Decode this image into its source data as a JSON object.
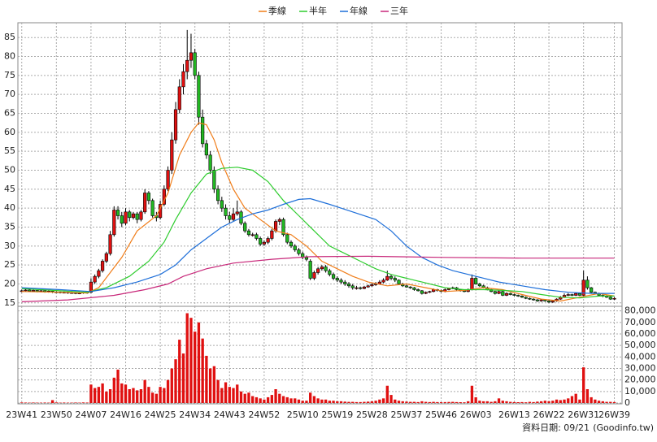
{
  "chart_data": {
    "type": "candlestick",
    "series": [
      {
        "name": "季線",
        "color": "#f07d19",
        "x": [
          0,
          10,
          17,
          20,
          26,
          30,
          35,
          38,
          41,
          44,
          46,
          48,
          50,
          52,
          55,
          58,
          62,
          66,
          70,
          74,
          78,
          82,
          86,
          90,
          95,
          100,
          105,
          110,
          115,
          120,
          125,
          130,
          135,
          140,
          145,
          150,
          154
        ],
        "values": [
          18,
          17.8,
          17.6,
          19,
          27,
          34,
          38,
          44,
          54,
          60,
          62.5,
          62,
          58,
          52,
          45,
          40,
          37,
          34,
          33,
          30,
          26,
          24,
          22,
          20.5,
          19.5,
          20,
          19,
          18,
          18.3,
          19,
          18.5,
          17.2,
          16,
          15.5,
          16.5,
          17.5,
          16.8
        ]
      },
      {
        "name": "半年",
        "color": "#2ecc2e",
        "x": [
          0,
          10,
          17,
          22,
          28,
          33,
          37,
          40,
          44,
          48,
          52,
          56,
          60,
          64,
          68,
          72,
          76,
          80,
          84,
          88,
          92,
          96,
          100,
          104,
          110,
          115,
          120,
          125,
          130,
          135,
          140,
          145,
          150,
          154
        ],
        "values": [
          18.8,
          18.2,
          17.8,
          19,
          22,
          26,
          31,
          37,
          44,
          49,
          50.5,
          50.8,
          50,
          47,
          42,
          38,
          34,
          30,
          28,
          26,
          24,
          22.5,
          21.5,
          20.5,
          19,
          18.5,
          18.5,
          18.3,
          18,
          17.2,
          16.5,
          16.3,
          16.8,
          16.8
        ]
      },
      {
        "name": "年線",
        "color": "#1e6fd9",
        "x": [
          0,
          10,
          18,
          24,
          30,
          36,
          40,
          44,
          48,
          52,
          56,
          60,
          64,
          68,
          72,
          75,
          80,
          86,
          92,
          96,
          100,
          104,
          108,
          112,
          118,
          124,
          130,
          136,
          142,
          148,
          154
        ],
        "values": [
          19,
          18.5,
          18,
          19,
          20.5,
          22.5,
          25,
          29,
          32,
          35,
          37,
          38.5,
          39.5,
          41,
          42.3,
          42.5,
          41,
          39,
          37,
          34,
          30,
          27,
          25,
          23.5,
          22,
          20.5,
          19.5,
          18.5,
          17.8,
          17.5,
          17.5
        ]
      },
      {
        "name": "三年",
        "color": "#c8287a",
        "x": [
          0,
          12,
          24,
          32,
          38,
          42,
          48,
          55,
          65,
          75,
          90,
          110,
          130,
          154
        ],
        "values": [
          15.3,
          15.8,
          17,
          18.5,
          20,
          22,
          24,
          25.5,
          26.5,
          27.2,
          27.3,
          27,
          26.8,
          26.8
        ]
      }
    ],
    "ohlc": [
      [
        18.0,
        18.5,
        17.8,
        18.2
      ],
      [
        18.2,
        18.7,
        18.0,
        18.4
      ],
      [
        18.4,
        18.6,
        17.9,
        18.1
      ],
      [
        18.1,
        18.5,
        17.9,
        18.3
      ],
      [
        18.3,
        18.4,
        17.8,
        18.0
      ],
      [
        18.0,
        18.4,
        17.8,
        18.2
      ],
      [
        18.2,
        18.3,
        17.7,
        17.9
      ],
      [
        17.9,
        18.3,
        17.7,
        18.1
      ],
      [
        18.1,
        18.2,
        17.6,
        17.8
      ],
      [
        17.8,
        18.1,
        17.6,
        17.9
      ],
      [
        17.9,
        18.0,
        17.5,
        17.7
      ],
      [
        17.7,
        18.0,
        17.5,
        17.8
      ],
      [
        17.8,
        17.9,
        17.4,
        17.6
      ],
      [
        17.6,
        17.9,
        17.4,
        17.7
      ],
      [
        17.7,
        17.8,
        17.3,
        17.5
      ],
      [
        17.5,
        17.8,
        17.3,
        17.6
      ],
      [
        17.6,
        18.0,
        17.4,
        17.8
      ],
      [
        17.8,
        17.9,
        17.4,
        17.6
      ],
      [
        17.8,
        21.5,
        17.6,
        20.5
      ],
      [
        20.5,
        22.5,
        20.0,
        22.0
      ],
      [
        22.0,
        24.0,
        21.5,
        23.5
      ],
      [
        23.5,
        26.5,
        23.0,
        26.0
      ],
      [
        26.0,
        28.5,
        25.5,
        28.0
      ],
      [
        28.0,
        34.0,
        27.5,
        33.0
      ],
      [
        33.0,
        40.5,
        32.5,
        39.5
      ],
      [
        39.5,
        40.5,
        37.0,
        38.0
      ],
      [
        38.0,
        39.0,
        35.0,
        36.0
      ],
      [
        36.0,
        40.0,
        35.5,
        39.0
      ],
      [
        39.0,
        39.5,
        36.5,
        37.5
      ],
      [
        37.5,
        39.0,
        37.0,
        38.5
      ],
      [
        38.5,
        39.0,
        36.0,
        37.0
      ],
      [
        37.0,
        39.5,
        36.5,
        39.0
      ],
      [
        39.0,
        45.0,
        38.5,
        44.0
      ],
      [
        44.0,
        44.5,
        41.0,
        42.0
      ],
      [
        42.0,
        42.5,
        37.5,
        38.0
      ],
      [
        38.0,
        39.0,
        36.5,
        37.5
      ],
      [
        37.5,
        42.0,
        37.0,
        41.0
      ],
      [
        41.0,
        46.0,
        40.5,
        45.0
      ],
      [
        45.0,
        51.0,
        44.5,
        50.0
      ],
      [
        50.0,
        60.0,
        49.0,
        58.0
      ],
      [
        58.0,
        68.0,
        57.0,
        66.0
      ],
      [
        66.0,
        74.0,
        65.0,
        72.0
      ],
      [
        72.0,
        78.0,
        70.0,
        76.0
      ],
      [
        76.0,
        87.0,
        74.0,
        79.0
      ],
      [
        79.0,
        86.0,
        77.0,
        81.0
      ],
      [
        81.0,
        82.0,
        74.0,
        75.0
      ],
      [
        75.0,
        76.0,
        62.0,
        64.0
      ],
      [
        64.0,
        66.0,
        56.0,
        57.0
      ],
      [
        57.0,
        58.0,
        53.0,
        54.0
      ],
      [
        54.0,
        55.0,
        49.0,
        50.0
      ],
      [
        50.0,
        51.0,
        44.0,
        45.0
      ],
      [
        45.0,
        46.0,
        41.0,
        42.0
      ],
      [
        42.0,
        43.0,
        39.0,
        40.0
      ],
      [
        40.0,
        41.0,
        37.0,
        38.0
      ],
      [
        38.0,
        39.0,
        36.0,
        37.0
      ],
      [
        37.0,
        40.0,
        36.5,
        38.5
      ],
      [
        38.5,
        42.0,
        38.0,
        39.0
      ],
      [
        39.0,
        39.5,
        35.5,
        36.0
      ],
      [
        36.0,
        36.5,
        33.5,
        34.0
      ],
      [
        34.0,
        34.5,
        32.5,
        33.0
      ],
      [
        33.0,
        33.5,
        32.5,
        33.0
      ],
      [
        33.0,
        33.5,
        31.5,
        32.0
      ],
      [
        32.0,
        32.5,
        30.0,
        30.5
      ],
      [
        30.5,
        31.5,
        30.0,
        31.0
      ],
      [
        31.0,
        32.5,
        30.5,
        32.0
      ],
      [
        32.0,
        34.5,
        31.5,
        34.0
      ],
      [
        34.0,
        37.0,
        33.5,
        36.5
      ],
      [
        36.5,
        37.5,
        35.5,
        37.0
      ],
      [
        37.0,
        37.5,
        32.5,
        33.0
      ],
      [
        33.0,
        33.5,
        30.5,
        31.0
      ],
      [
        31.0,
        31.5,
        29.5,
        30.0
      ],
      [
        30.0,
        30.5,
        28.5,
        29.0
      ],
      [
        29.0,
        29.5,
        27.5,
        28.0
      ],
      [
        28.0,
        28.5,
        26.5,
        27.0
      ],
      [
        27.0,
        27.5,
        26.0,
        26.5
      ],
      [
        26.0,
        26.5,
        21.0,
        21.5
      ],
      [
        21.5,
        23.5,
        21.0,
        23.0
      ],
      [
        23.0,
        24.5,
        22.5,
        24.0
      ],
      [
        24.0,
        25.0,
        23.5,
        24.5
      ],
      [
        24.5,
        25.0,
        23.0,
        23.5
      ],
      [
        23.5,
        24.0,
        22.0,
        22.5
      ],
      [
        22.5,
        23.0,
        21.0,
        21.5
      ],
      [
        21.5,
        22.0,
        20.5,
        21.0
      ],
      [
        21.0,
        21.5,
        20.0,
        20.5
      ],
      [
        20.5,
        21.0,
        19.5,
        20.0
      ],
      [
        20.0,
        20.5,
        19.0,
        19.5
      ],
      [
        19.5,
        20.0,
        18.5,
        19.0
      ],
      [
        19.0,
        19.5,
        18.5,
        19.0
      ],
      [
        19.0,
        19.3,
        18.5,
        18.8
      ],
      [
        18.8,
        19.5,
        18.6,
        19.2
      ],
      [
        19.2,
        19.8,
        19.0,
        19.5
      ],
      [
        19.5,
        20.2,
        19.3,
        19.8
      ],
      [
        19.8,
        20.5,
        19.5,
        20.0
      ],
      [
        20.0,
        21.0,
        19.8,
        20.5
      ],
      [
        20.5,
        21.5,
        20.2,
        21.0
      ],
      [
        21.0,
        23.5,
        20.8,
        22.0
      ],
      [
        22.0,
        22.5,
        21.0,
        21.5
      ],
      [
        21.5,
        22.0,
        20.5,
        21.0
      ],
      [
        21.0,
        21.2,
        19.8,
        20.0
      ],
      [
        20.0,
        20.3,
        19.2,
        19.5
      ],
      [
        19.5,
        19.8,
        19.0,
        19.2
      ],
      [
        19.2,
        19.4,
        18.7,
        19.0
      ],
      [
        19.0,
        19.2,
        18.2,
        18.5
      ],
      [
        18.5,
        18.8,
        18.0,
        18.2
      ],
      [
        18.2,
        18.4,
        17.2,
        17.5
      ],
      [
        17.5,
        18.0,
        17.3,
        17.8
      ],
      [
        17.8,
        18.2,
        17.6,
        18.0
      ],
      [
        18.0,
        18.8,
        17.8,
        18.5
      ],
      [
        18.5,
        18.7,
        18.0,
        18.3
      ],
      [
        18.3,
        18.5,
        17.8,
        18.0
      ],
      [
        18.0,
        18.8,
        17.8,
        18.5
      ],
      [
        18.5,
        19.0,
        18.3,
        18.8
      ],
      [
        18.8,
        19.3,
        18.6,
        19.0
      ],
      [
        19.0,
        19.2,
        18.3,
        18.5
      ],
      [
        18.5,
        18.7,
        18.0,
        18.2
      ],
      [
        18.2,
        18.4,
        17.8,
        18.0
      ],
      [
        18.0,
        18.8,
        17.8,
        18.5
      ],
      [
        18.5,
        22.5,
        18.3,
        21.5
      ],
      [
        21.5,
        22.0,
        19.8,
        20.0
      ],
      [
        20.0,
        20.3,
        19.2,
        19.5
      ],
      [
        19.5,
        19.8,
        18.8,
        19.0
      ],
      [
        19.0,
        19.3,
        18.3,
        18.5
      ],
      [
        18.5,
        18.7,
        17.8,
        18.0
      ],
      [
        18.0,
        18.2,
        17.2,
        17.5
      ],
      [
        17.5,
        18.3,
        17.3,
        18.0
      ],
      [
        18.0,
        18.2,
        16.8,
        17.0
      ],
      [
        17.0,
        17.8,
        16.8,
        17.5
      ],
      [
        17.5,
        17.7,
        17.0,
        17.2
      ],
      [
        17.2,
        17.4,
        16.8,
        17.0
      ],
      [
        17.0,
        17.2,
        16.6,
        16.8
      ],
      [
        16.8,
        17.0,
        16.3,
        16.5
      ],
      [
        16.5,
        16.7,
        16.0,
        16.2
      ],
      [
        16.2,
        16.4,
        15.8,
        16.0
      ],
      [
        16.0,
        16.2,
        15.6,
        15.8
      ],
      [
        15.8,
        16.0,
        15.3,
        15.5
      ],
      [
        15.5,
        16.0,
        15.3,
        15.8
      ],
      [
        15.8,
        16.0,
        15.3,
        15.5
      ],
      [
        15.5,
        15.7,
        15.0,
        15.2
      ],
      [
        15.2,
        15.7,
        15.0,
        15.5
      ],
      [
        15.5,
        16.2,
        15.3,
        16.0
      ],
      [
        16.0,
        16.8,
        15.8,
        16.5
      ],
      [
        16.5,
        17.5,
        16.3,
        17.0
      ],
      [
        17.0,
        17.6,
        16.8,
        17.2
      ],
      [
        17.2,
        17.4,
        16.8,
        17.0
      ],
      [
        17.0,
        17.8,
        16.8,
        17.5
      ],
      [
        17.5,
        17.7,
        16.8,
        17.0
      ],
      [
        17.0,
        23.5,
        16.8,
        21.0
      ],
      [
        21.0,
        22.0,
        18.5,
        19.0
      ],
      [
        19.0,
        19.2,
        17.5,
        17.8
      ],
      [
        17.8,
        18.0,
        17.2,
        17.5
      ],
      [
        17.5,
        17.7,
        16.8,
        17.0
      ],
      [
        17.0,
        17.2,
        16.5,
        16.8
      ],
      [
        16.8,
        17.0,
        16.3,
        16.5
      ],
      [
        16.5,
        16.7,
        15.8,
        16.0
      ],
      [
        16.0,
        16.5,
        15.8,
        16.2
      ]
    ],
    "up_color": "#e01010",
    "down_color": "#22b822",
    "volume": [
      500,
      400,
      300,
      400,
      300,
      300,
      400,
      300,
      2500,
      500,
      300,
      400,
      300,
      300,
      400,
      300,
      500,
      400,
      16000,
      13000,
      14000,
      17000,
      10000,
      12000,
      22000,
      29000,
      17000,
      16000,
      12000,
      13000,
      11000,
      12000,
      20000,
      14000,
      9000,
      8000,
      14000,
      13000,
      20000,
      30000,
      38000,
      55000,
      43000,
      78000,
      74000,
      62000,
      70000,
      56000,
      41000,
      30000,
      32000,
      20000,
      13000,
      18000,
      14000,
      13000,
      16000,
      10000,
      8000,
      9000,
      6000,
      5000,
      4000,
      3000,
      5000,
      7000,
      12000,
      8000,
      6000,
      5000,
      4000,
      4000,
      3000,
      2000,
      2000,
      9000,
      6000,
      4000,
      3000,
      3000,
      2000,
      2000,
      1500,
      1500,
      1200,
      1000,
      1000,
      800,
      800,
      1000,
      1200,
      1500,
      2000,
      3000,
      4000,
      15000,
      7000,
      3000,
      2000,
      1500,
      1200,
      1000,
      1000,
      800,
      1500,
      1000,
      800,
      1000,
      800,
      700,
      800,
      900,
      1000,
      800,
      700,
      600,
      1500,
      15000,
      5000,
      2000,
      1500,
      1500,
      1000,
      1500,
      4000,
      2000,
      1500,
      1000,
      800,
      700,
      800,
      600,
      1000,
      800,
      1200,
      1500,
      2000,
      1500,
      2000,
      3000,
      2500,
      3000,
      4000,
      6000,
      8000,
      3000,
      31000,
      12000,
      5000,
      3000,
      2000,
      1500,
      1000,
      1000,
      800
    ],
    "volume_color": "#e01010",
    "xlim": [
      -1,
      156
    ],
    "xticks": [
      {
        "value": 0,
        "label": "23W41"
      },
      {
        "value": 9,
        "label": "23W50"
      },
      {
        "value": 18,
        "label": "24W07"
      },
      {
        "value": 27,
        "label": "24W16"
      },
      {
        "value": 36,
        "label": "24W25"
      },
      {
        "value": 45,
        "label": "24W34"
      },
      {
        "value": 54,
        "label": "24W43"
      },
      {
        "value": 63,
        "label": "24W52"
      },
      {
        "value": 73,
        "label": "25W10"
      },
      {
        "value": 82,
        "label": "25W19"
      },
      {
        "value": 91,
        "label": "25W28"
      },
      {
        "value": 100,
        "label": "25W37"
      },
      {
        "value": 109,
        "label": "25W46"
      },
      {
        "value": 118,
        "label": "26W03"
      },
      {
        "value": 128,
        "label": "26W13"
      },
      {
        "value": 137,
        "label": "26W22"
      },
      {
        "value": 146,
        "label": "26W31"
      },
      {
        "value": 154,
        "label": "26W39"
      }
    ],
    "ylim": [
      14.1,
      88.9
    ],
    "yticks": [
      15,
      20,
      25,
      30,
      35,
      40,
      45,
      50,
      55,
      60,
      65,
      70,
      75,
      80,
      85
    ],
    "volume_ylim": [
      0,
      84000
    ],
    "volume_yticks": [
      0,
      {
        "value": 10000,
        "label": "10,000"
      },
      {
        "value": 20000,
        "label": "20,000"
      },
      {
        "value": 30000,
        "label": "30,000"
      },
      {
        "value": 40000,
        "label": "40,000"
      },
      {
        "value": 50000,
        "label": "50,000"
      },
      {
        "value": 60000,
        "label": "60,000"
      },
      {
        "value": 70000,
        "label": "70,000"
      },
      {
        "value": 80000,
        "label": "80,000"
      }
    ],
    "grid": true,
    "legend": "top",
    "footer": "資料日期: 09/21",
    "source": "(Goodinfo.tw)"
  }
}
